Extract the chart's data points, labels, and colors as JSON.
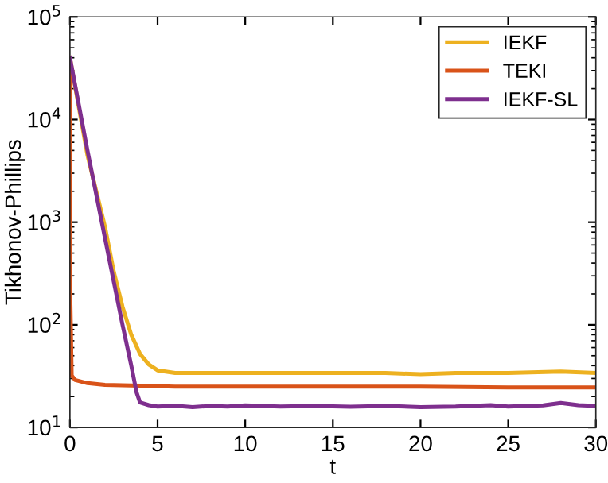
{
  "chart_data": {
    "type": "line",
    "xlabel": "t",
    "ylabel": "Tikhonov-Phillips",
    "log": "y",
    "grid": false,
    "legend": "top right",
    "line_style": "solid",
    "marker": "none",
    "xlim": [
      0,
      30
    ],
    "xticks": [
      0,
      5,
      10,
      15,
      20,
      25,
      30
    ],
    "ylim": [
      10,
      100000
    ],
    "yticks": [
      {
        "value": 10,
        "label": "10$^{1}$"
      },
      {
        "value": 100,
        "label": "10$^{2}$"
      },
      {
        "value": 1000,
        "label": "10$^{3}$"
      },
      {
        "value": 10000,
        "label": "10$^{4}$"
      },
      {
        "value": 100000,
        "label": "10$^{5}$"
      }
    ],
    "series": [
      {
        "name": "IEKF",
        "color": "#edb120",
        "x": [
          0,
          1,
          2,
          2.5,
          3,
          3.5,
          4,
          4.5,
          5,
          6,
          8,
          10,
          12,
          15,
          18,
          20,
          22,
          25,
          28,
          30
        ],
        "values": [
          40000,
          4500,
          900,
          330,
          150,
          80,
          52,
          41,
          36,
          34,
          34,
          34,
          34,
          34,
          34,
          33,
          34,
          34,
          35,
          34
        ]
      },
      {
        "name": "TEKI",
        "color": "#d95319",
        "x": [
          0,
          0.02,
          0.1,
          0.3,
          1,
          2,
          4,
          6,
          10,
          15,
          20,
          25,
          30
        ],
        "values": [
          40000,
          200,
          32,
          29,
          27,
          26,
          25.5,
          25,
          25,
          25,
          25,
          24.5,
          24.5
        ]
      },
      {
        "name": "IEKF-SL",
        "color": "#7e2f8e",
        "x": [
          0,
          1,
          2,
          3,
          3.5,
          3.8,
          4,
          4.5,
          5,
          6,
          7,
          8,
          9,
          10,
          12,
          14,
          16,
          18,
          20,
          22,
          24,
          25,
          26,
          27,
          28,
          29,
          30
        ],
        "values": [
          40000,
          5000,
          700,
          100,
          40,
          22,
          17.5,
          16.5,
          16,
          16.3,
          15.8,
          16.2,
          16,
          16.4,
          16,
          16.2,
          15.9,
          16.2,
          15.8,
          16,
          16.5,
          16,
          16.2,
          16.4,
          17.3,
          16.5,
          16.2
        ]
      }
    ]
  }
}
